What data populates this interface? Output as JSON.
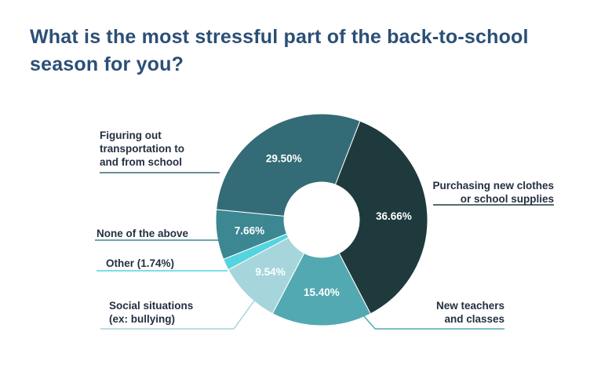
{
  "title": "What is the most stressful part of the back-to-school season for you?",
  "chart_data": {
    "type": "pie",
    "title": "What is the most stressful part of the back-to-school season for you?",
    "slices": [
      {
        "label": "Purchasing new clothes or school supplies",
        "display_label": "Purchasing new clothes\nor school supplies",
        "value": 36.66,
        "value_label": "36.66%",
        "color": "#1f3a3d"
      },
      {
        "label": "New teachers and classes",
        "display_label": "New teachers\nand classes",
        "value": 15.4,
        "value_label": "15.40%",
        "color": "#53a9b2"
      },
      {
        "label": "Social situations (ex: bullying)",
        "display_label": "Social situations\n(ex: bullying)",
        "value": 9.54,
        "value_label": "9.54%",
        "color": "#a6d6dc"
      },
      {
        "label": "Other (1.74%)",
        "display_label": "Other (1.74%)",
        "value": 1.74,
        "value_label": "",
        "color": "#53d4de"
      },
      {
        "label": "None of the above",
        "display_label": "None of the above",
        "value": 7.66,
        "value_label": "7.66%",
        "color": "#3c8791"
      },
      {
        "label": "Figuring out transportation to and from school",
        "display_label": "Figuring out\ntransportation to\nand from school",
        "value": 29.5,
        "value_label": "29.50%",
        "color": "#336c76"
      }
    ],
    "donut": true,
    "legend": "none"
  }
}
